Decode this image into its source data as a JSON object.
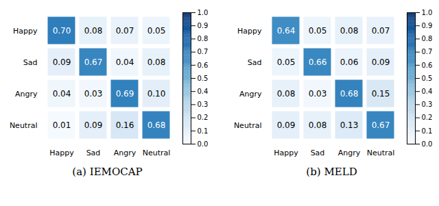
{
  "chart_data": [
    {
      "type": "heatmap",
      "title": "(a) IEMOCAP",
      "x": [
        "Happy",
        "Sad",
        "Angry",
        "Neutral"
      ],
      "y": [
        "Happy",
        "Sad",
        "Angry",
        "Neutral"
      ],
      "values": [
        [
          0.7,
          0.08,
          0.07,
          0.05
        ],
        [
          0.09,
          0.67,
          0.04,
          0.08
        ],
        [
          0.04,
          0.03,
          0.69,
          0.1
        ],
        [
          0.01,
          0.09,
          0.16,
          0.68
        ]
      ],
      "value_labels": [
        [
          "0.70",
          "0.08",
          "0.07",
          "0.05"
        ],
        [
          "0.09",
          "0.67",
          "0.04",
          "0.08"
        ],
        [
          "0.04",
          "0.03",
          "0.69",
          "0.10"
        ],
        [
          "0.01",
          "0.09",
          "0.16",
          "0.68"
        ]
      ],
      "data_labels": true,
      "color": "Blues",
      "colorbar_lim": [
        0.0,
        1.0
      ],
      "colorbar_ticks": [
        {
          "value": 0.0,
          "label": "0.0"
        },
        0.1,
        0.2,
        0.3,
        0.4,
        0.5,
        0.6,
        0.7,
        0.8,
        0.9,
        {
          "value": 1.0,
          "label": "1.0"
        }
      ]
    },
    {
      "type": "heatmap",
      "title": "(b) MELD",
      "x": [
        "Happy",
        "Sad",
        "Angry",
        "Neutral"
      ],
      "y": [
        "Happy",
        "Sad",
        "Angry",
        "Neutral"
      ],
      "values": [
        [
          0.64,
          0.05,
          0.08,
          0.07
        ],
        [
          0.05,
          0.66,
          0.06,
          0.09
        ],
        [
          0.08,
          0.03,
          0.68,
          0.15
        ],
        [
          0.09,
          0.08,
          0.13,
          0.67
        ]
      ],
      "value_labels": [
        [
          "0.64",
          "0.05",
          "0.08",
          "0.07"
        ],
        [
          "0.05",
          "0.66",
          "0.06",
          "0.09"
        ],
        [
          "0.08",
          "0.03",
          "0.68",
          "0.15"
        ],
        [
          "0.09",
          "0.08",
          "0.13",
          "0.67"
        ]
      ],
      "data_labels": true,
      "color": "Blues",
      "colorbar_lim": [
        0.0,
        1.0
      ],
      "colorbar_ticks": [
        {
          "value": 0.0,
          "label": "0.0"
        },
        0.1,
        0.2,
        0.3,
        0.4,
        0.5,
        0.6,
        0.7,
        0.8,
        0.9,
        {
          "value": 1.0,
          "label": "1.0"
        }
      ]
    }
  ]
}
